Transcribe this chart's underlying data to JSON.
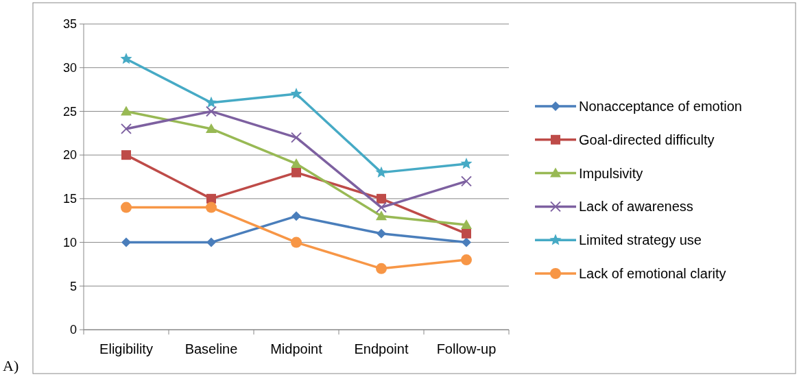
{
  "chart_data": {
    "type": "line",
    "categories": [
      "Eligibility",
      "Baseline",
      "Midpoint",
      "Endpoint",
      "Follow-up"
    ],
    "series": [
      {
        "name": "Nonacceptance of emotion",
        "color": "#4a7ebb",
        "marker": "diamond",
        "values": [
          10,
          10,
          13,
          11,
          10
        ]
      },
      {
        "name": "Goal-directed difficulty",
        "color": "#be4b48",
        "marker": "square",
        "values": [
          20,
          15,
          18,
          15,
          11
        ]
      },
      {
        "name": "Impulsivity",
        "color": "#98b954",
        "marker": "triangle",
        "values": [
          25,
          23,
          19,
          13,
          12
        ]
      },
      {
        "name": "Lack of awareness",
        "color": "#7d60a0",
        "marker": "cross",
        "values": [
          23,
          25,
          22,
          14,
          17
        ]
      },
      {
        "name": "Limited strategy use",
        "color": "#46aac5",
        "marker": "star",
        "values": [
          31,
          26,
          27,
          18,
          19
        ]
      },
      {
        "name": "Lack of emotional clarity",
        "color": "#f79646",
        "marker": "circle",
        "values": [
          14,
          14,
          10,
          7,
          8
        ]
      }
    ],
    "ylim": [
      0,
      35
    ],
    "yticks": [
      0,
      5,
      10,
      15,
      20,
      25,
      30,
      35
    ],
    "grid": "y",
    "legend": "right",
    "line_style": "solid",
    "annotations": [
      "A)"
    ]
  }
}
